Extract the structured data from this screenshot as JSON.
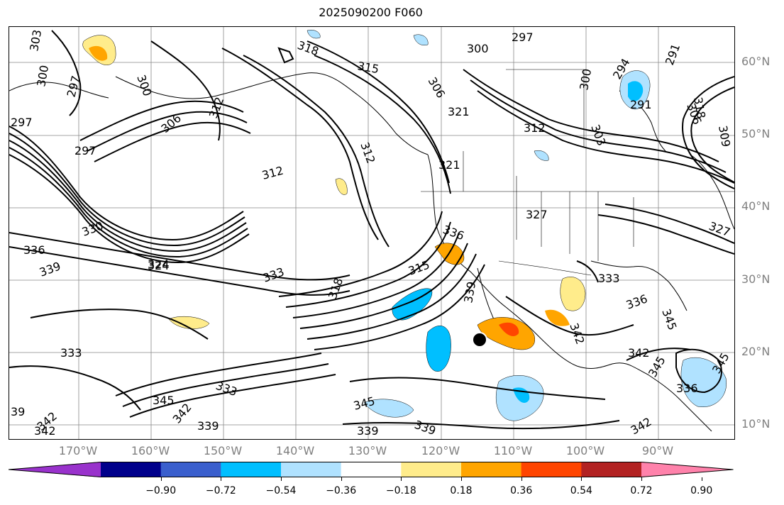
{
  "title": "2025090200 F060",
  "lat_labels": [
    "60°N",
    "50°N",
    "40°N",
    "30°N",
    "20°N",
    "10°N"
  ],
  "lon_labels": [
    "170°W",
    "160°W",
    "150°W",
    "140°W",
    "130°W",
    "120°W",
    "110°W",
    "100°W",
    "90°W"
  ],
  "contour_labels": [
    "303",
    "300",
    "297",
    "297",
    "300",
    "306",
    "312",
    "318",
    "315",
    "306",
    "297",
    "300",
    "291",
    "294",
    "291",
    "297",
    "306",
    "309",
    "318",
    "324",
    "312",
    "312",
    "312",
    "321",
    "321",
    "303",
    "300",
    "327",
    "327",
    "333",
    "336",
    "336",
    "339",
    "324",
    "330",
    "333",
    "318",
    "315",
    "339",
    "333",
    "345",
    "342",
    "336",
    "342",
    "345",
    "342",
    "339",
    "342",
    "339",
    "345",
    "336",
    "339",
    "342",
    "345",
    "333",
    "342",
    "345",
    "39"
  ],
  "colorbar": {
    "colors": [
      "#9932cc",
      "#00008b",
      "#3a5fcd",
      "#00bfff",
      "#b0e2ff",
      "#ffffff",
      "#ffec8b",
      "#ffa500",
      "#ff4500",
      "#b22222",
      "#ff82ab"
    ],
    "ticks": [
      "−0.90",
      "−0.72",
      "−0.54",
      "−0.36",
      "−0.18",
      "0.18",
      "0.36",
      "0.54",
      "0.72",
      "0.90"
    ]
  }
}
